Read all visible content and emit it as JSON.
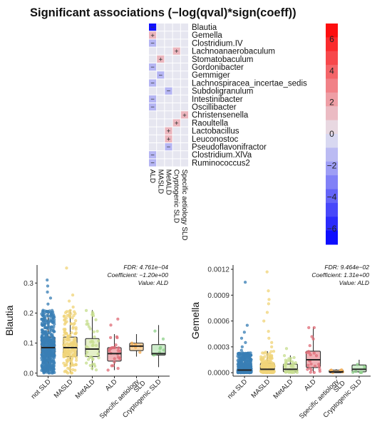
{
  "chart_data": [
    {
      "type": "heatmap",
      "title": "Significant associations (−log(qval)*sign(coeff))",
      "rows": [
        "Blautia",
        "Gemella",
        "Clostridium.IV",
        "Lachnoanaerobaculum",
        "Stomatobaculum",
        "Gordonibacter",
        "Gemmiger",
        "Lachnospiracea_incertae_sedis",
        "Subdoligranulum",
        "Intestinibacter",
        "Oscillibacter",
        "Christensenella",
        "Raoultella",
        "Lactobacillus",
        "Leuconostoc",
        "Pseudoflavonifractor",
        "Clostridium.XlVa",
        "Ruminococcus2"
      ],
      "columns": [
        "ALD",
        "MASLD",
        "MetALD",
        "Cryptogenic SLD",
        "Specific aetiology SLD"
      ],
      "values": [
        [
          -6.5,
          0,
          0,
          0,
          0
        ],
        [
          1.5,
          0,
          0,
          0,
          0
        ],
        [
          -1.5,
          0,
          0,
          0,
          0
        ],
        [
          0,
          0,
          0,
          1.5,
          0
        ],
        [
          0,
          1.5,
          0,
          0,
          0
        ],
        [
          -1.5,
          0,
          0,
          0,
          0
        ],
        [
          0,
          -1.5,
          0,
          0,
          0
        ],
        [
          -1.5,
          0,
          0,
          0,
          0
        ],
        [
          0,
          0,
          -1.5,
          0,
          0
        ],
        [
          -1.5,
          0,
          0,
          0,
          0
        ],
        [
          -1.5,
          0,
          0,
          0,
          0
        ],
        [
          0,
          0,
          0,
          0,
          1.5
        ],
        [
          0,
          0,
          0,
          1.5,
          0
        ],
        [
          0,
          0,
          1.5,
          0,
          0
        ],
        [
          0,
          0,
          1.5,
          0,
          0
        ],
        [
          0,
          0,
          -1.5,
          0,
          0
        ],
        [
          -1.5,
          0,
          0,
          0,
          0
        ],
        [
          -1.5,
          0,
          0,
          0,
          0
        ]
      ],
      "signs": [
        [
          "−",
          "",
          "",
          "",
          ""
        ],
        [
          "+",
          "",
          "",
          "",
          ""
        ],
        [
          "−",
          "",
          "",
          "",
          ""
        ],
        [
          "",
          "",
          "",
          "+",
          ""
        ],
        [
          "",
          "+",
          "",
          "",
          ""
        ],
        [
          "−",
          "",
          "",
          "",
          ""
        ],
        [
          "",
          "−",
          "",
          "",
          ""
        ],
        [
          "−",
          "",
          "",
          "",
          ""
        ],
        [
          "",
          "",
          "−",
          "",
          ""
        ],
        [
          "−",
          "",
          "",
          "",
          ""
        ],
        [
          "−",
          "",
          "",
          "",
          ""
        ],
        [
          "",
          "",
          "",
          "",
          "+"
        ],
        [
          "",
          "",
          "",
          "+",
          ""
        ],
        [
          "",
          "",
          "+",
          "",
          ""
        ],
        [
          "",
          "",
          "+",
          "",
          ""
        ],
        [
          "",
          "",
          "−",
          "",
          ""
        ],
        [
          "−",
          "",
          "",
          "",
          ""
        ],
        [
          "−",
          "",
          "",
          "",
          ""
        ]
      ],
      "colorbar": {
        "range": [
          -7,
          7
        ],
        "ticks": [
          "6",
          "4",
          "2",
          "0",
          "−2",
          "−4",
          "−6"
        ],
        "tick_values": [
          6,
          4,
          2,
          0,
          -2,
          -4,
          -6
        ],
        "steps": 16,
        "low_color": "#0000ff",
        "mid_color": "#e6e6f0",
        "high_color": "#ff0000"
      }
    },
    {
      "type": "box",
      "ylabel": "Blautia",
      "categories": [
        "not SLD",
        "MASLD",
        "MetALD",
        "ALD",
        "Specific aetiology SLD",
        "Cryptogenic SLD"
      ],
      "category_label_lines": [
        [
          "not SLD"
        ],
        [
          "MASLD"
        ],
        [
          "MetALD"
        ],
        [
          "ALD"
        ],
        [
          "Specific aetiology",
          "SLD"
        ],
        [
          "Cryptogenic SLD"
        ]
      ],
      "colors": [
        "#3a7fb5",
        "#f0d479",
        "#c7de8f",
        "#e06d78",
        "#f5ad52",
        "#8fd18b"
      ],
      "fills": [
        "#b9d2e6",
        "#f7ecc4",
        "#e5f0c9",
        "#f0b3b8",
        "#f9d6a6",
        "#cdeccb"
      ],
      "n_points": [
        450,
        160,
        40,
        25,
        6,
        8
      ],
      "boxes": [
        {
          "min": 0.0,
          "q1": 0.055,
          "median": 0.085,
          "q3": 0.12,
          "max": 0.21,
          "outliers": [
            0.23,
            0.25,
            0.27,
            0.29,
            0.31
          ]
        },
        {
          "min": 0.0,
          "q1": 0.055,
          "median": 0.085,
          "q3": 0.12,
          "max": 0.21,
          "outliers": [
            0.22,
            0.24,
            0.26,
            0.35
          ]
        },
        {
          "min": 0.01,
          "q1": 0.055,
          "median": 0.08,
          "q3": 0.115,
          "max": 0.21,
          "outliers": []
        },
        {
          "min": 0.01,
          "q1": 0.04,
          "median": 0.065,
          "q3": 0.085,
          "max": 0.13,
          "outliers": [
            0.16,
            0.18
          ]
        },
        {
          "min": 0.055,
          "q1": 0.075,
          "median": 0.09,
          "q3": 0.1,
          "max": 0.13,
          "outliers": []
        },
        {
          "min": 0.02,
          "q1": 0.06,
          "median": 0.065,
          "q3": 0.095,
          "max": 0.16,
          "outliers": []
        }
      ],
      "ylim": [
        -0.01,
        0.36
      ],
      "yticks": [
        0.0,
        0.1,
        0.2,
        0.3
      ],
      "ytick_labels": [
        "0.0",
        "0.1",
        "0.2",
        "0.3"
      ],
      "annotation": [
        "FDR: 4.761e−04",
        "Coefficient: −1.20e+00",
        "Value: ALD"
      ]
    },
    {
      "type": "box",
      "ylabel": "Gemella",
      "categories": [
        "not SLD",
        "MASLD",
        "MetALD",
        "ALD",
        "Specific aetiology SLD",
        "Cryptogenic SLD"
      ],
      "category_label_lines": [
        [
          "not SLD"
        ],
        [
          "MASLD"
        ],
        [
          "MetALD"
        ],
        [
          "ALD"
        ],
        [
          "Specific aetiology",
          "SLD"
        ],
        [
          "Cryptogenic SLD"
        ]
      ],
      "colors": [
        "#3a7fb5",
        "#f0d479",
        "#c7de8f",
        "#e06d78",
        "#f5ad52",
        "#8fd18b"
      ],
      "fills": [
        "#b9d2e6",
        "#f7ecc4",
        "#e5f0c9",
        "#f0b3b8",
        "#f9d6a6",
        "#cdeccb"
      ],
      "n_points": [
        450,
        160,
        40,
        25,
        6,
        8
      ],
      "boxes": [
        {
          "min": 0.0,
          "q1": 1e-05,
          "median": 3e-05,
          "q3": 0.0001,
          "max": 0.00023,
          "outliers": [
            0.00026,
            0.0003,
            0.00035,
            0.0004,
            0.00047,
            0.00055,
            0.00105
          ]
        },
        {
          "min": 0.0,
          "q1": 1e-05,
          "median": 4e-05,
          "q3": 0.00011,
          "max": 0.00025,
          "outliers": [
            0.0003,
            0.00035,
            0.0004,
            0.00048,
            0.0006,
            0.0007,
            0.0008,
            0.00085,
            0.00095,
            0.00117
          ]
        },
        {
          "min": 0.0,
          "q1": 1e-05,
          "median": 4e-05,
          "q3": 0.0001,
          "max": 0.0002,
          "outliers": [
            0.00028
          ]
        },
        {
          "min": 0.0,
          "q1": 6e-05,
          "median": 0.00015,
          "q3": 0.00025,
          "max": 0.00053,
          "outliers": []
        },
        {
          "min": 0.0,
          "q1": 0.0,
          "median": 1e-05,
          "q3": 3e-05,
          "max": 4e-05,
          "outliers": []
        },
        {
          "min": 0.0,
          "q1": 1e-05,
          "median": 4e-05,
          "q3": 9e-05,
          "max": 0.00015,
          "outliers": []
        }
      ],
      "ylim": [
        -4e-05,
        0.00125
      ],
      "yticks": [
        0.0,
        0.0003,
        0.0006,
        0.0009,
        0.0012
      ],
      "ytick_labels": [
        "0.0000",
        "0.0003",
        "0.0006",
        "0.0009",
        "0.0012"
      ],
      "annotation": [
        "FDR: 9.464e−02",
        "Coefficient: 1.31e+00",
        "Value: ALD"
      ]
    }
  ]
}
